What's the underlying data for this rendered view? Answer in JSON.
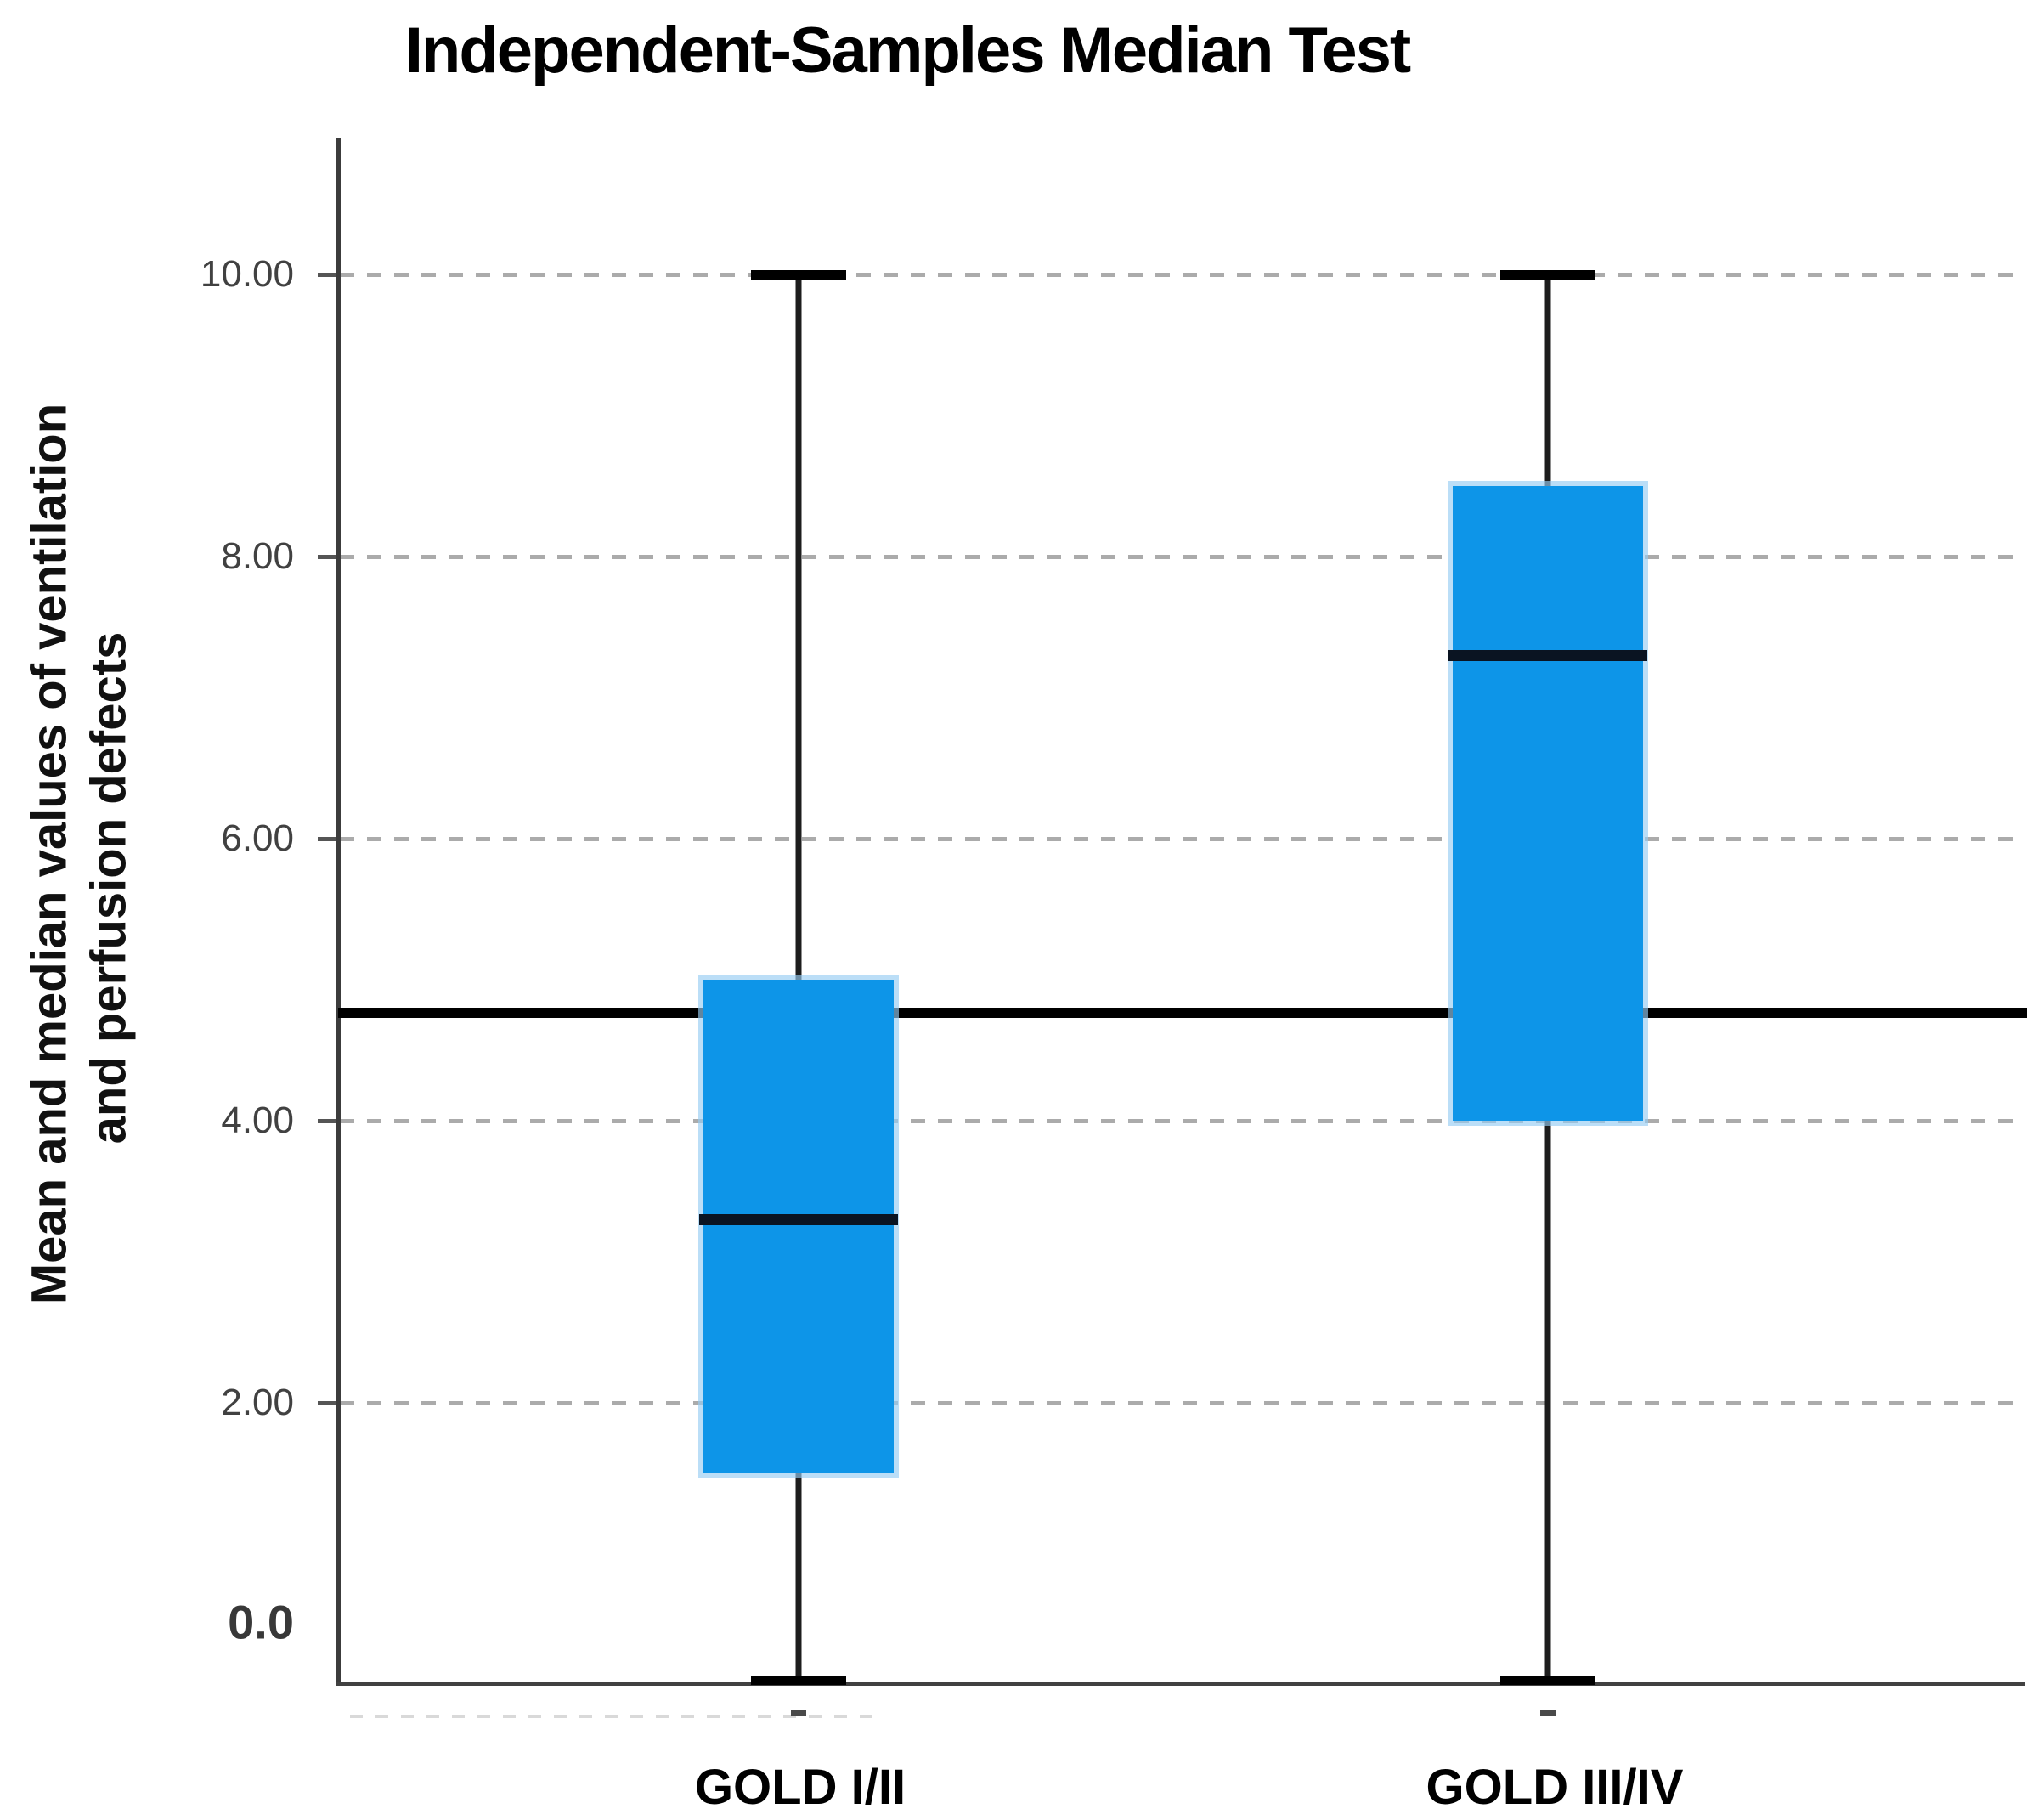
{
  "title": "Independent-Samples Median Test",
  "y_axis": {
    "label_line1": "Mean and median values of ventilation",
    "label_line2": "and perfusion defects",
    "ticks": [
      {
        "label": "10.00",
        "value": 10
      },
      {
        "label": "8.00",
        "value": 8
      },
      {
        "label": "6.00",
        "value": 6
      },
      {
        "label": "4.00",
        "value": 4
      },
      {
        "label": "2.00",
        "value": 2
      },
      {
        "label": "0.0",
        "value": 0,
        "emphasis": true
      }
    ]
  },
  "x_axis": {
    "categories": [
      "GOLD I/II",
      "GOLD III/IV"
    ]
  },
  "chart_data": {
    "type": "box",
    "title": "Independent-Samples Median Test",
    "ylabel": "Mean and median values of ventilation and perfusion defects",
    "xlabel": "",
    "categories": [
      "GOLD I/II",
      "GOLD III/IV"
    ],
    "series": [
      {
        "name": "GOLD I/II",
        "whisker_low": 0.0,
        "q1": 1.5,
        "median": 3.3,
        "q3": 5.0,
        "whisker_high": 10.0
      },
      {
        "name": "GOLD III/IV",
        "whisker_low": 0.0,
        "q1": 4.0,
        "median": 7.3,
        "q3": 8.5,
        "whisker_high": 10.0
      }
    ],
    "pooled_median_line": 4.75,
    "ylim": [
      0,
      10
    ],
    "yticks": [
      0,
      2,
      4,
      6,
      8,
      10
    ],
    "gridlines": [
      2,
      4,
      6,
      8,
      10
    ],
    "grid_style": "dashed",
    "legend": "none"
  },
  "colors": {
    "box_fill": "#0d95e8",
    "box_halo": "#9acdf1",
    "median_line": "#0a1422",
    "grand_median_line": "#000000",
    "gridline": "#ababab",
    "axis": "#3c3c3c",
    "tick_label": "#414141",
    "zero_label": "#383838",
    "text": "#000000"
  }
}
